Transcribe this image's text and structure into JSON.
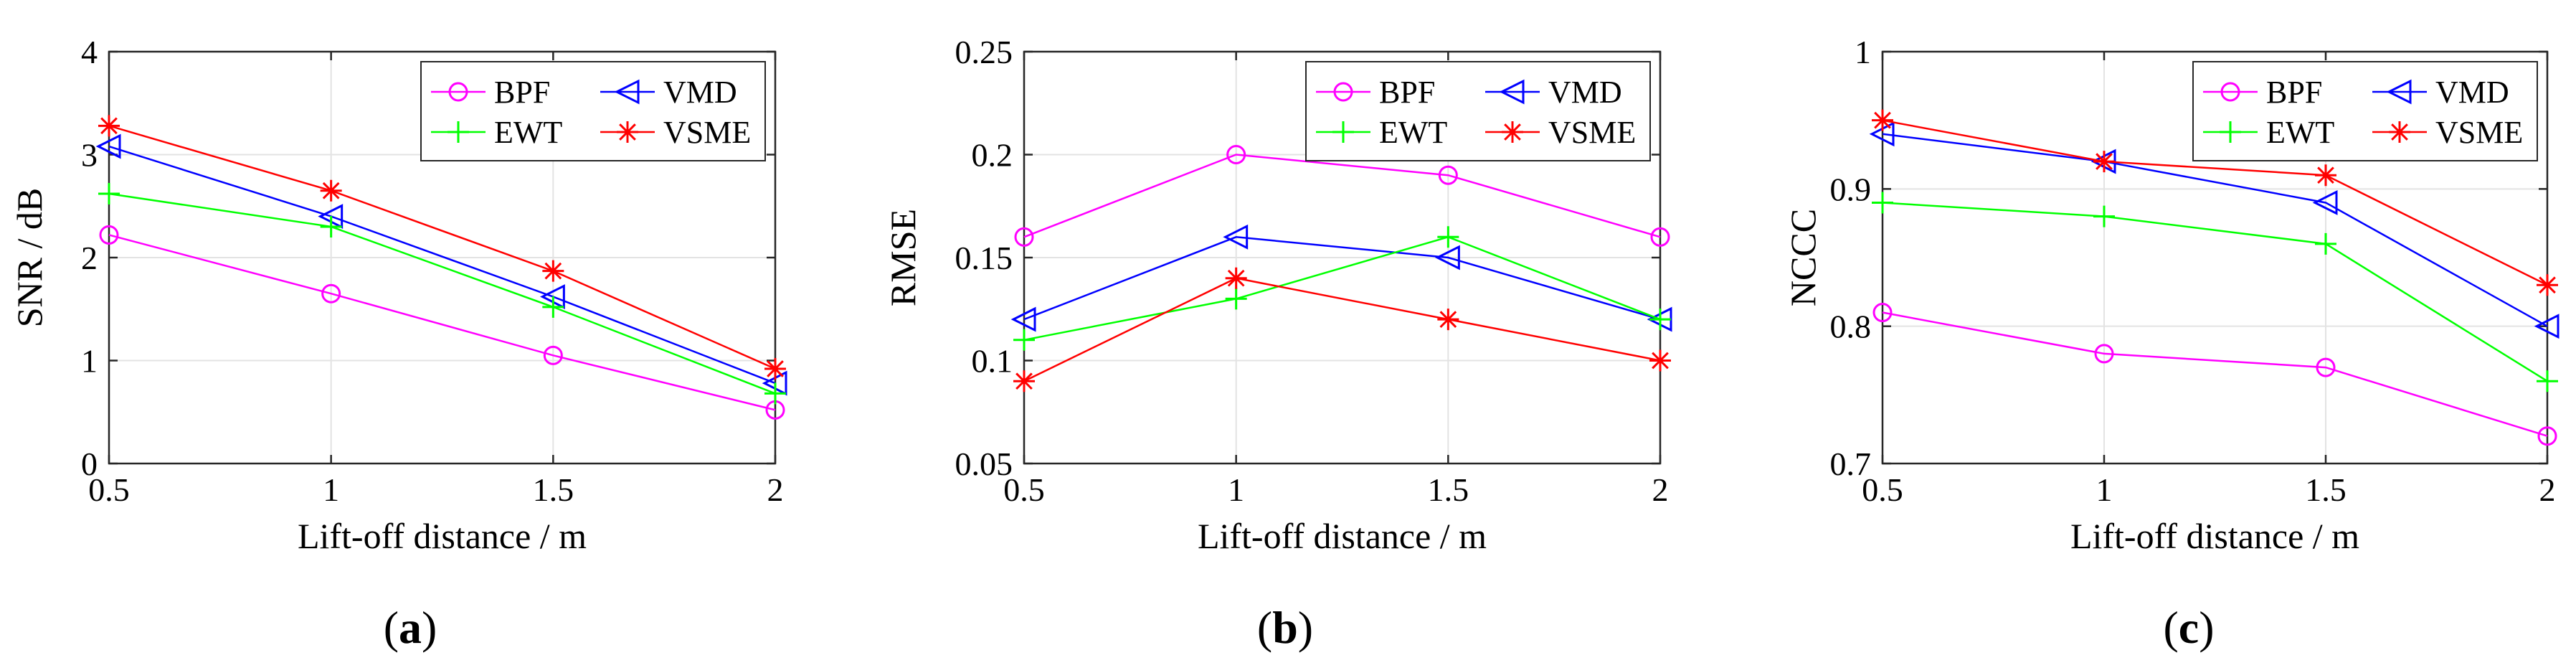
{
  "chart_data": [
    {
      "type": "line",
      "panel_label": "a",
      "x": [
        0.5,
        1,
        1.5,
        2
      ],
      "xlabel": "Lift-off distance / m",
      "ylabel": "SNR / dB",
      "xlim": [
        0.5,
        2
      ],
      "ylim": [
        0,
        4
      ],
      "xticks": [
        0.5,
        1,
        1.5,
        2
      ],
      "yticks": [
        0,
        1,
        2,
        3,
        4
      ],
      "xtick_labels": [
        "0.5",
        "1",
        "1.5",
        "2"
      ],
      "ytick_labels": [
        "0",
        "1",
        "2",
        "3",
        "4"
      ],
      "grid": true,
      "legend": "top-right",
      "series": [
        {
          "name": "BPF",
          "values": [
            2.22,
            1.65,
            1.05,
            0.52
          ],
          "color": "#ff00ff",
          "marker": "circle"
        },
        {
          "name": "VMD",
          "values": [
            3.08,
            2.4,
            1.62,
            0.78
          ],
          "color": "#0000ff",
          "marker": "triangle-left"
        },
        {
          "name": "EWT",
          "values": [
            2.62,
            2.3,
            1.52,
            0.68
          ],
          "color": "#00ff00",
          "marker": "plus"
        },
        {
          "name": "VSME",
          "values": [
            3.28,
            2.65,
            1.87,
            0.92
          ],
          "color": "#ff0000",
          "marker": "asterisk"
        }
      ]
    },
    {
      "type": "line",
      "panel_label": "b",
      "x": [
        0.5,
        1,
        1.5,
        2
      ],
      "xlabel": "Lift-off distance / m",
      "ylabel": "RMSE",
      "xlim": [
        0.5,
        2
      ],
      "ylim": [
        0.05,
        0.25
      ],
      "xticks": [
        0.5,
        1,
        1.5,
        2
      ],
      "yticks": [
        0.05,
        0.1,
        0.15,
        0.2,
        0.25
      ],
      "xtick_labels": [
        "0.5",
        "1",
        "1.5",
        "2"
      ],
      "ytick_labels": [
        "0.05",
        "0.1",
        "0.15",
        "0.2",
        "0.25"
      ],
      "grid": true,
      "legend": "top-right",
      "series": [
        {
          "name": "BPF",
          "values": [
            0.16,
            0.2,
            0.19,
            0.16
          ],
          "color": "#ff00ff",
          "marker": "circle"
        },
        {
          "name": "VMD",
          "values": [
            0.12,
            0.16,
            0.15,
            0.12
          ],
          "color": "#0000ff",
          "marker": "triangle-left"
        },
        {
          "name": "EWT",
          "values": [
            0.11,
            0.13,
            0.16,
            0.12
          ],
          "color": "#00ff00",
          "marker": "plus"
        },
        {
          "name": "VSME",
          "values": [
            0.09,
            0.14,
            0.12,
            0.1
          ],
          "color": "#ff0000",
          "marker": "asterisk"
        }
      ]
    },
    {
      "type": "line",
      "panel_label": "c",
      "x": [
        0.5,
        1,
        1.5,
        2
      ],
      "xlabel": "Lift-off distance / m",
      "ylabel": "NCCC",
      "xlim": [
        0.5,
        2
      ],
      "ylim": [
        0.7,
        1
      ],
      "xticks": [
        0.5,
        1,
        1.5,
        2
      ],
      "yticks": [
        0.7,
        0.8,
        0.9,
        1
      ],
      "xtick_labels": [
        "0.5",
        "1",
        "1.5",
        "2"
      ],
      "ytick_labels": [
        "0.7",
        "0.8",
        "0.9",
        "1"
      ],
      "grid": true,
      "legend": "top-right",
      "series": [
        {
          "name": "BPF",
          "values": [
            0.81,
            0.78,
            0.77,
            0.72
          ],
          "color": "#ff00ff",
          "marker": "circle"
        },
        {
          "name": "VMD",
          "values": [
            0.94,
            0.92,
            0.89,
            0.8
          ],
          "color": "#0000ff",
          "marker": "triangle-left"
        },
        {
          "name": "EWT",
          "values": [
            0.89,
            0.88,
            0.86,
            0.76
          ],
          "color": "#00ff00",
          "marker": "plus"
        },
        {
          "name": "VSME",
          "values": [
            0.95,
            0.92,
            0.91,
            0.83
          ],
          "color": "#ff0000",
          "marker": "asterisk"
        }
      ]
    }
  ]
}
